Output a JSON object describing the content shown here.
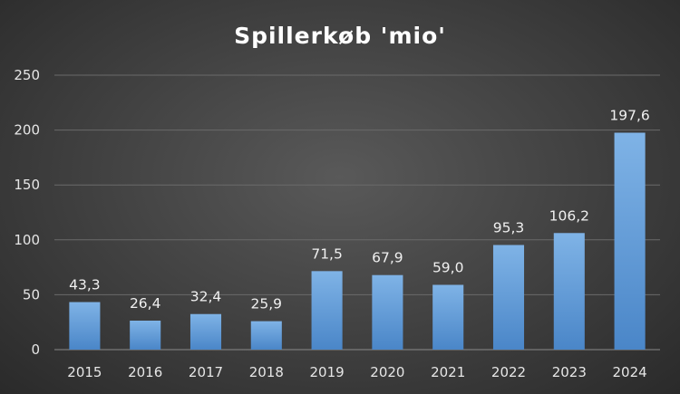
{
  "chart_data": {
    "type": "bar",
    "title": "Spillerkøb 'mio'",
    "categories": [
      "2015",
      "2016",
      "2017",
      "2018",
      "2019",
      "2020",
      "2021",
      "2022",
      "2023",
      "2024"
    ],
    "values": [
      43.3,
      26.4,
      32.4,
      25.9,
      71.5,
      67.9,
      59.0,
      95.3,
      106.2,
      197.6
    ],
    "data_labels": [
      "43,3",
      "26,4",
      "32,4",
      "25,9",
      "71,5",
      "67,9",
      "59,0",
      "95,3",
      "106,2",
      "197,6"
    ],
    "y_ticks": [
      "0",
      "50",
      "100",
      "150",
      "200",
      "250"
    ],
    "ylim": [
      0,
      250
    ],
    "grid": true,
    "legend": "none",
    "colors": {
      "bar_top": "#7fb3e6",
      "bar_bottom": "#4a86c8",
      "background": "#3f3f3f",
      "gridline": "#6a6a6a",
      "text": "#e6e6e6"
    }
  }
}
